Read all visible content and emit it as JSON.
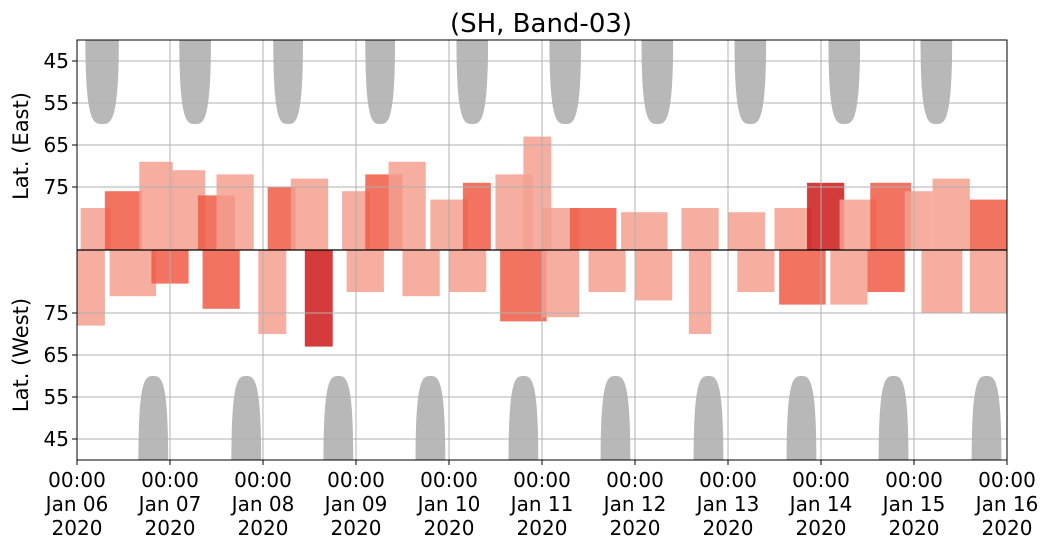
{
  "chart_data": {
    "type": "heatmap",
    "title": "(SH, Band-03)",
    "ylabel_top": "Lat. (East)",
    "ylabel_bottom": "Lat. (West)",
    "x_range": [
      "2020-01-06 00:00",
      "2020-01-16 00:00"
    ],
    "y_range_top": [
      40,
      90
    ],
    "y_range_bottom": [
      90,
      40
    ],
    "y_ticks_top": [
      45,
      55,
      65,
      75
    ],
    "y_ticks_bottom": [
      75,
      65,
      55,
      45
    ],
    "x_ticks": [
      {
        "time": "00:00",
        "date": "Jan 06",
        "year": "2020"
      },
      {
        "time": "00:00",
        "date": "Jan 07",
        "year": "2020"
      },
      {
        "time": "00:00",
        "date": "Jan 08",
        "year": "2020"
      },
      {
        "time": "00:00",
        "date": "Jan 09",
        "year": "2020"
      },
      {
        "time": "00:00",
        "date": "Jan 10",
        "year": "2020"
      },
      {
        "time": "00:00",
        "date": "Jan 11",
        "year": "2020"
      },
      {
        "time": "00:00",
        "date": "Jan 12",
        "year": "2020"
      },
      {
        "time": "00:00",
        "date": "Jan 13",
        "year": "2020"
      },
      {
        "time": "00:00",
        "date": "Jan 14",
        "year": "2020"
      },
      {
        "time": "00:00",
        "date": "Jan 15",
        "year": "2020"
      },
      {
        "time": "00:00",
        "date": "Jan 16",
        "year": "2020"
      }
    ],
    "grid": true,
    "colors": {
      "daylight": "#b8b8b8",
      "activity_low": "#f4a090",
      "activity_mid": "#ef5a44",
      "activity_high": "#cc1a1a",
      "grid": "#b0b0b0"
    },
    "daylight_east": [
      {
        "day": 0.27,
        "half_width": 0.18,
        "min_lat": 60
      },
      {
        "day": 1.27,
        "half_width": 0.17,
        "min_lat": 60
      },
      {
        "day": 2.27,
        "half_width": 0.16,
        "min_lat": 60
      },
      {
        "day": 3.26,
        "half_width": 0.16,
        "min_lat": 60
      },
      {
        "day": 4.25,
        "half_width": 0.17,
        "min_lat": 60
      },
      {
        "day": 5.25,
        "half_width": 0.17,
        "min_lat": 60
      },
      {
        "day": 6.24,
        "half_width": 0.17,
        "min_lat": 60
      },
      {
        "day": 7.24,
        "half_width": 0.17,
        "min_lat": 60
      },
      {
        "day": 8.25,
        "half_width": 0.17,
        "min_lat": 60
      },
      {
        "day": 9.24,
        "half_width": 0.17,
        "min_lat": 60
      }
    ],
    "daylight_west": [
      {
        "day": 0.82,
        "half_width": 0.16,
        "min_lat": 60
      },
      {
        "day": 1.82,
        "half_width": 0.16,
        "min_lat": 60
      },
      {
        "day": 2.81,
        "half_width": 0.16,
        "min_lat": 60
      },
      {
        "day": 3.8,
        "half_width": 0.16,
        "min_lat": 60
      },
      {
        "day": 4.8,
        "half_width": 0.16,
        "min_lat": 60
      },
      {
        "day": 5.79,
        "half_width": 0.16,
        "min_lat": 60
      },
      {
        "day": 6.79,
        "half_width": 0.16,
        "min_lat": 60
      },
      {
        "day": 7.79,
        "half_width": 0.16,
        "min_lat": 60
      },
      {
        "day": 8.78,
        "half_width": 0.16,
        "min_lat": 60
      },
      {
        "day": 9.78,
        "half_width": 0.16,
        "min_lat": 60
      }
    ],
    "activity_east": [
      {
        "day": 0.2,
        "lat_top": 80,
        "half_width": 0.16,
        "level": 1
      },
      {
        "day": 0.5,
        "lat_top": 76,
        "half_width": 0.2,
        "level": 2
      },
      {
        "day": 0.85,
        "lat_top": 69,
        "half_width": 0.18,
        "level": 1
      },
      {
        "day": 1.2,
        "lat_top": 71,
        "half_width": 0.18,
        "level": 1
      },
      {
        "day": 1.5,
        "lat_top": 77,
        "half_width": 0.2,
        "level": 2
      },
      {
        "day": 1.7,
        "lat_top": 72,
        "half_width": 0.2,
        "level": 1
      },
      {
        "day": 2.2,
        "lat_top": 75,
        "half_width": 0.15,
        "level": 2
      },
      {
        "day": 2.5,
        "lat_top": 73,
        "half_width": 0.2,
        "level": 1
      },
      {
        "day": 3.0,
        "lat_top": 76,
        "half_width": 0.15,
        "level": 1
      },
      {
        "day": 3.3,
        "lat_top": 72,
        "half_width": 0.2,
        "level": 2
      },
      {
        "day": 3.55,
        "lat_top": 69,
        "half_width": 0.2,
        "level": 1
      },
      {
        "day": 4.0,
        "lat_top": 78,
        "half_width": 0.2,
        "level": 1
      },
      {
        "day": 4.3,
        "lat_top": 74,
        "half_width": 0.15,
        "level": 2
      },
      {
        "day": 4.7,
        "lat_top": 72,
        "half_width": 0.2,
        "level": 1
      },
      {
        "day": 4.95,
        "lat_top": 63,
        "half_width": 0.15,
        "level": 1
      },
      {
        "day": 5.2,
        "lat_top": 80,
        "half_width": 0.2,
        "level": 1
      },
      {
        "day": 5.55,
        "lat_top": 80,
        "half_width": 0.25,
        "level": 2
      },
      {
        "day": 6.1,
        "lat_top": 81,
        "half_width": 0.25,
        "level": 1
      },
      {
        "day": 6.7,
        "lat_top": 80,
        "half_width": 0.2,
        "level": 1
      },
      {
        "day": 7.2,
        "lat_top": 81,
        "half_width": 0.2,
        "level": 1
      },
      {
        "day": 7.7,
        "lat_top": 80,
        "half_width": 0.2,
        "level": 1
      },
      {
        "day": 8.05,
        "lat_top": 74,
        "half_width": 0.2,
        "level": 3
      },
      {
        "day": 8.4,
        "lat_top": 78,
        "half_width": 0.2,
        "level": 1
      },
      {
        "day": 8.75,
        "lat_top": 74,
        "half_width": 0.22,
        "level": 2
      },
      {
        "day": 9.05,
        "lat_top": 76,
        "half_width": 0.15,
        "level": 1
      },
      {
        "day": 9.4,
        "lat_top": 73,
        "half_width": 0.2,
        "level": 1
      },
      {
        "day": 9.8,
        "lat_top": 78,
        "half_width": 0.2,
        "level": 2
      }
    ],
    "activity_west": [
      {
        "day": 0.15,
        "lat_bottom": 72,
        "half_width": 0.15,
        "level": 1
      },
      {
        "day": 0.6,
        "lat_bottom": 79,
        "half_width": 0.25,
        "level": 1
      },
      {
        "day": 1.0,
        "lat_bottom": 82,
        "half_width": 0.2,
        "level": 2
      },
      {
        "day": 1.55,
        "lat_bottom": 76,
        "half_width": 0.2,
        "level": 2
      },
      {
        "day": 2.1,
        "lat_bottom": 70,
        "half_width": 0.15,
        "level": 1
      },
      {
        "day": 2.6,
        "lat_bottom": 67,
        "half_width": 0.15,
        "level": 3
      },
      {
        "day": 3.1,
        "lat_bottom": 80,
        "half_width": 0.2,
        "level": 1
      },
      {
        "day": 3.7,
        "lat_bottom": 79,
        "half_width": 0.2,
        "level": 1
      },
      {
        "day": 4.2,
        "lat_bottom": 80,
        "half_width": 0.2,
        "level": 1
      },
      {
        "day": 4.8,
        "lat_bottom": 73,
        "half_width": 0.25,
        "level": 2
      },
      {
        "day": 5.2,
        "lat_bottom": 74,
        "half_width": 0.2,
        "level": 1
      },
      {
        "day": 5.7,
        "lat_bottom": 80,
        "half_width": 0.2,
        "level": 1
      },
      {
        "day": 6.2,
        "lat_bottom": 78,
        "half_width": 0.2,
        "level": 1
      },
      {
        "day": 6.7,
        "lat_bottom": 70,
        "half_width": 0.12,
        "level": 1
      },
      {
        "day": 7.3,
        "lat_bottom": 80,
        "half_width": 0.2,
        "level": 1
      },
      {
        "day": 7.8,
        "lat_bottom": 77,
        "half_width": 0.25,
        "level": 2
      },
      {
        "day": 8.3,
        "lat_bottom": 77,
        "half_width": 0.2,
        "level": 1
      },
      {
        "day": 8.7,
        "lat_bottom": 80,
        "half_width": 0.2,
        "level": 2
      },
      {
        "day": 9.3,
        "lat_bottom": 75,
        "half_width": 0.22,
        "level": 1
      },
      {
        "day": 9.8,
        "lat_bottom": 75,
        "half_width": 0.2,
        "level": 1
      }
    ]
  }
}
